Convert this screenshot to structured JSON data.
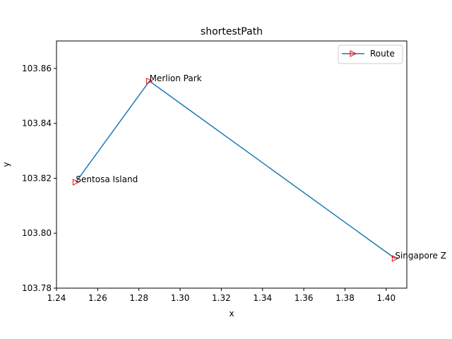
{
  "chart_data": {
    "type": "line",
    "title": "shortestPath",
    "xlabel": "x",
    "ylabel": "y",
    "xlim": [
      1.24,
      1.41
    ],
    "ylim": [
      103.78,
      103.87
    ],
    "xticks": [
      1.24,
      1.26,
      1.28,
      1.3,
      1.32,
      1.34,
      1.36,
      1.38,
      1.4
    ],
    "xtick_labels": [
      "1.24",
      "1.26",
      "1.28",
      "1.30",
      "1.32",
      "1.34",
      "1.36",
      "1.38",
      "1.40"
    ],
    "yticks": [
      103.78,
      103.8,
      103.82,
      103.84,
      103.86
    ],
    "ytick_labels": [
      "103.78",
      "103.80",
      "103.82",
      "103.84",
      "103.86"
    ],
    "grid": false,
    "legend": {
      "placement": "top-right",
      "entries": [
        "Route"
      ]
    },
    "series": [
      {
        "name": "Route",
        "color": "#1f77b4",
        "marker": "triangle-right",
        "marker_edge_color": "#ff0000",
        "points": [
          {
            "x": 1.2494,
            "y": 103.8186
          },
          {
            "x": 1.2851,
            "y": 103.8554
          },
          {
            "x": 1.4043,
            "y": 103.7908
          }
        ]
      }
    ],
    "annotations": [
      {
        "text": "Sentosa Island",
        "x": 1.2494,
        "y": 103.8186
      },
      {
        "text": "Merlion Park",
        "x": 1.2851,
        "y": 103.8554
      },
      {
        "text": "Singapore Z",
        "x": 1.4043,
        "y": 103.7908
      }
    ]
  }
}
